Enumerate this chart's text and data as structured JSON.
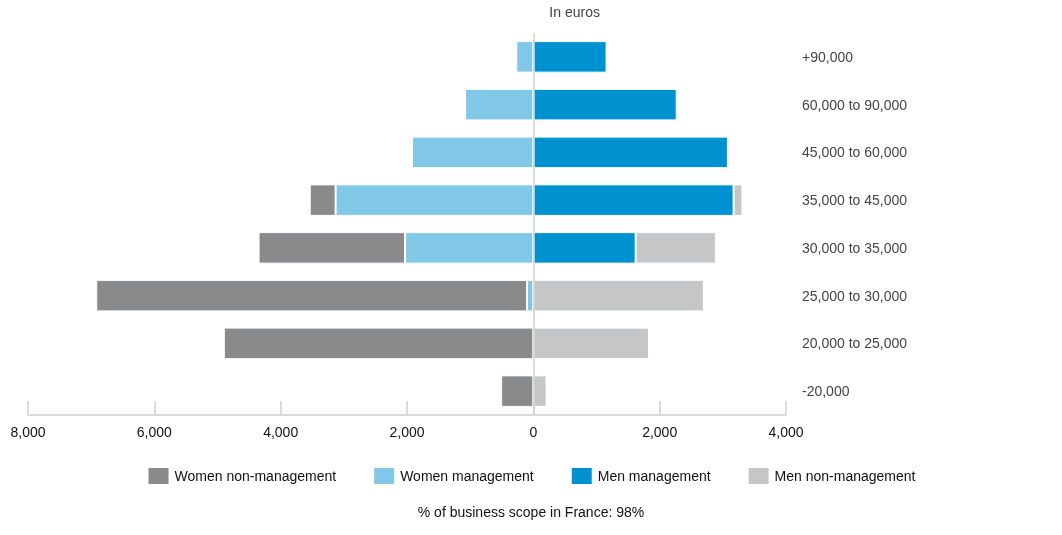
{
  "chart_data": {
    "type": "bar",
    "orientation": "horizontal",
    "stacked": true,
    "ylabel": "In euros",
    "categories": [
      "+90,000",
      "60,000 to 90,000",
      "45,000 to 60,000",
      "35,000 to 45,000",
      "30,000 to 35,000",
      "25,000 to 30,000",
      "20,000 to 25,000",
      "-20,000"
    ],
    "series": [
      {
        "name": "Women non-management",
        "color": "#898a8c",
        "values": [
          null,
          null,
          null,
          -410,
          -2320,
          -6820,
          -4900,
          -510
        ]
      },
      {
        "name": "Women management",
        "color": "#81c7e8",
        "values": [
          -270,
          -1080,
          -1920,
          -3130,
          -2030,
          -100,
          null,
          null
        ]
      },
      {
        "name": "Men management",
        "color": "#0092d0",
        "values": [
          1160,
          2270,
          3080,
          3170,
          1620,
          null,
          null,
          null
        ]
      },
      {
        "name": "Men non-management",
        "color": "#c5c6c8",
        "values": [
          null,
          null,
          null,
          140,
          1270,
          2700,
          1830,
          210
        ]
      }
    ],
    "xlim": [
      -8000,
      4000
    ],
    "xticks": [
      {
        "value": -8000,
        "label": "8,000"
      },
      {
        "value": -6000,
        "label": "6,000"
      },
      {
        "value": -4000,
        "label": "4,000"
      },
      {
        "value": -2000,
        "label": "2,000"
      },
      0,
      {
        "value": 2000,
        "label": "2,000"
      },
      {
        "value": 4000,
        "label": "4,000"
      }
    ],
    "ref_lines": [
      {
        "axis": "x",
        "value": 0,
        "color": "#cfcfcf"
      }
    ],
    "grid": false,
    "legend": "bottom",
    "annotations": [
      "% of business scope in France: 98%"
    ]
  }
}
